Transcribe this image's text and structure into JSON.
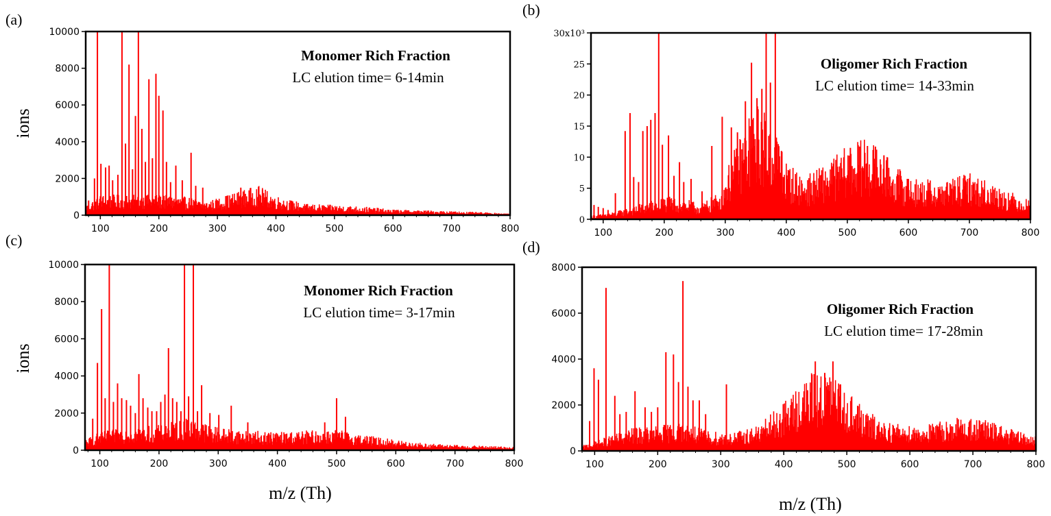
{
  "figure": {
    "ylabel_left": "ions",
    "xlabel": "m/z (Th)"
  },
  "chart_data": [
    {
      "panel": "(a)",
      "type": "bar",
      "title": "",
      "xlabel": "",
      "ylabel": "ions",
      "xlim": [
        75,
        800
      ],
      "ylim": [
        0,
        10000
      ],
      "xticks": [
        100,
        200,
        300,
        400,
        500,
        600,
        700,
        800
      ],
      "yticks": [
        0,
        2000,
        4000,
        6000,
        8000,
        10000
      ],
      "ytick_labels": [
        "0",
        "2000",
        "4000",
        "6000",
        "8000",
        "10000"
      ],
      "annotation": {
        "title": "Monomer Rich Fraction",
        "subtitle": "LC elution time= 6-14min"
      },
      "color": "#ff0000",
      "envelope": [
        [
          78,
          500
        ],
        [
          100,
          900
        ],
        [
          150,
          900
        ],
        [
          200,
          900
        ],
        [
          250,
          800
        ],
        [
          280,
          600
        ],
        [
          300,
          750
        ],
        [
          330,
          1000
        ],
        [
          370,
          1300
        ],
        [
          400,
          850
        ],
        [
          450,
          500
        ],
        [
          500,
          450
        ],
        [
          550,
          380
        ],
        [
          600,
          250
        ],
        [
          700,
          180
        ],
        [
          800,
          80
        ]
      ],
      "peaks": [
        [
          80,
          800
        ],
        [
          90,
          2000
        ],
        [
          95,
          10000
        ],
        [
          101,
          2800
        ],
        [
          109,
          2600
        ],
        [
          115,
          2700
        ],
        [
          121,
          1900
        ],
        [
          130,
          2200
        ],
        [
          137,
          10000
        ],
        [
          143,
          3900
        ],
        [
          149,
          8200
        ],
        [
          155,
          2500
        ],
        [
          160,
          5400
        ],
        [
          165,
          10000
        ],
        [
          171,
          4700
        ],
        [
          177,
          2900
        ],
        [
          183,
          7400
        ],
        [
          189,
          3100
        ],
        [
          195,
          7700
        ],
        [
          200,
          6500
        ],
        [
          207,
          5700
        ],
        [
          213,
          2900
        ],
        [
          220,
          1800
        ],
        [
          229,
          2700
        ],
        [
          240,
          1900
        ],
        [
          255,
          3400
        ],
        [
          263,
          1600
        ],
        [
          275,
          1500
        ],
        [
          340,
          1500
        ],
        [
          377,
          1400
        ]
      ]
    },
    {
      "panel": "(b)",
      "type": "bar",
      "title": "",
      "xlabel": "",
      "ylabel": "",
      "xlim": [
        80,
        800
      ],
      "ylim": [
        0,
        30000
      ],
      "xticks": [
        100,
        200,
        300,
        400,
        500,
        600,
        700,
        800
      ],
      "yticks": [
        0,
        5000,
        10000,
        15000,
        20000,
        25000,
        30000
      ],
      "ytick_labels": [
        "0",
        "5",
        "10",
        "15",
        "20",
        "25",
        "30x10³"
      ],
      "annotation": {
        "title": "Oligomer Rich Fraction",
        "subtitle": "LC elution time= 14-33min"
      },
      "color": "#ff0000",
      "envelope": [
        [
          82,
          500
        ],
        [
          120,
          1000
        ],
        [
          160,
          2000
        ],
        [
          200,
          3000
        ],
        [
          240,
          2500
        ],
        [
          260,
          2000
        ],
        [
          290,
          3500
        ],
        [
          310,
          8000
        ],
        [
          330,
          12000
        ],
        [
          350,
          15000
        ],
        [
          380,
          13000
        ],
        [
          400,
          7500
        ],
        [
          430,
          5500
        ],
        [
          460,
          7000
        ],
        [
          500,
          9500
        ],
        [
          530,
          10500
        ],
        [
          560,
          8500
        ],
        [
          600,
          5500
        ],
        [
          650,
          5000
        ],
        [
          700,
          6000
        ],
        [
          730,
          5000
        ],
        [
          770,
          3500
        ],
        [
          800,
          2500
        ]
      ],
      "peaks": [
        [
          85,
          2300
        ],
        [
          92,
          2000
        ],
        [
          100,
          1800
        ],
        [
          108,
          1500
        ],
        [
          120,
          4200
        ],
        [
          136,
          14200
        ],
        [
          144,
          17100
        ],
        [
          150,
          6800
        ],
        [
          158,
          6000
        ],
        [
          165,
          14200
        ],
        [
          172,
          15000
        ],
        [
          178,
          16000
        ],
        [
          185,
          17100
        ],
        [
          191,
          30000
        ],
        [
          197,
          12000
        ],
        [
          207,
          13500
        ],
        [
          216,
          7000
        ],
        [
          225,
          9200
        ],
        [
          232,
          6000
        ],
        [
          244,
          6500
        ],
        [
          262,
          4500
        ],
        [
          278,
          11800
        ],
        [
          295,
          16500
        ],
        [
          310,
          14800
        ],
        [
          320,
          14000
        ],
        [
          333,
          19000
        ],
        [
          343,
          25200
        ],
        [
          352,
          19500
        ],
        [
          360,
          21000
        ],
        [
          367,
          30000
        ],
        [
          374,
          22000
        ],
        [
          382,
          30000
        ],
        [
          392,
          11000
        ],
        [
          505,
          11500
        ],
        [
          520,
          11700
        ],
        [
          533,
          11800
        ],
        [
          546,
          11700
        ],
        [
          560,
          10300
        ],
        [
          600,
          6500
        ],
        [
          700,
          6600
        ]
      ]
    },
    {
      "panel": "(c)",
      "type": "bar",
      "title": "",
      "xlabel": "",
      "ylabel": "ions",
      "xlim": [
        75,
        800
      ],
      "ylim": [
        0,
        10000
      ],
      "xticks": [
        100,
        200,
        300,
        400,
        500,
        600,
        700,
        800
      ],
      "yticks": [
        0,
        2000,
        4000,
        6000,
        8000,
        10000
      ],
      "ytick_labels": [
        "0",
        "2000",
        "4000",
        "6000",
        "8000",
        "10000"
      ],
      "annotation": {
        "title": "Monomer Rich Fraction",
        "subtitle": "LC elution time= 3-17min"
      },
      "color": "#ff0000",
      "envelope": [
        [
          78,
          500
        ],
        [
          100,
          800
        ],
        [
          150,
          1000
        ],
        [
          200,
          1100
        ],
        [
          250,
          1400
        ],
        [
          300,
          1000
        ],
        [
          350,
          850
        ],
        [
          400,
          800
        ],
        [
          450,
          850
        ],
        [
          500,
          900
        ],
        [
          550,
          650
        ],
        [
          600,
          450
        ],
        [
          650,
          300
        ],
        [
          700,
          230
        ],
        [
          800,
          150
        ]
      ],
      "peaks": [
        [
          88,
          1700
        ],
        [
          96,
          4700
        ],
        [
          103,
          7600
        ],
        [
          109,
          2800
        ],
        [
          116,
          10000
        ],
        [
          123,
          2600
        ],
        [
          130,
          3600
        ],
        [
          137,
          2800
        ],
        [
          145,
          2700
        ],
        [
          152,
          2400
        ],
        [
          160,
          2000
        ],
        [
          166,
          4100
        ],
        [
          173,
          2800
        ],
        [
          181,
          2300
        ],
        [
          188,
          2100
        ],
        [
          196,
          2100
        ],
        [
          203,
          2600
        ],
        [
          210,
          3000
        ],
        [
          216,
          5500
        ],
        [
          223,
          2800
        ],
        [
          230,
          2600
        ],
        [
          237,
          2100
        ],
        [
          243,
          10000
        ],
        [
          250,
          2900
        ],
        [
          258,
          10000
        ],
        [
          265,
          2100
        ],
        [
          272,
          3500
        ],
        [
          286,
          2000
        ],
        [
          301,
          1900
        ],
        [
          322,
          2400
        ],
        [
          350,
          1500
        ],
        [
          480,
          1500
        ],
        [
          500,
          2800
        ],
        [
          515,
          1800
        ]
      ]
    },
    {
      "panel": "(d)",
      "type": "bar",
      "title": "",
      "xlabel": "m/z (Th)",
      "ylabel": "",
      "xlim": [
        80,
        800
      ],
      "ylim": [
        0,
        8000
      ],
      "xticks": [
        100,
        200,
        300,
        400,
        500,
        600,
        700,
        800
      ],
      "yticks": [
        0,
        2000,
        4000,
        6000,
        8000
      ],
      "ytick_labels": [
        "0",
        "2000",
        "4000",
        "6000",
        "8000"
      ],
      "annotation": {
        "title": "Oligomer Rich Fraction",
        "subtitle": "LC elution time= 17-28min"
      },
      "color": "#ff0000",
      "envelope": [
        [
          82,
          200
        ],
        [
          120,
          500
        ],
        [
          160,
          800
        ],
        [
          200,
          900
        ],
        [
          240,
          1000
        ],
        [
          280,
          700
        ],
        [
          320,
          650
        ],
        [
          360,
          900
        ],
        [
          400,
          1700
        ],
        [
          440,
          2700
        ],
        [
          470,
          2800
        ],
        [
          500,
          2200
        ],
        [
          530,
          1400
        ],
        [
          570,
          1000
        ],
        [
          620,
          900
        ],
        [
          680,
          1200
        ],
        [
          720,
          1100
        ],
        [
          770,
          700
        ],
        [
          800,
          500
        ]
      ],
      "peaks": [
        [
          92,
          1300
        ],
        [
          99,
          3600
        ],
        [
          106,
          3100
        ],
        [
          118,
          7100
        ],
        [
          132,
          2400
        ],
        [
          140,
          1600
        ],
        [
          150,
          1700
        ],
        [
          164,
          2600
        ],
        [
          180,
          1900
        ],
        [
          190,
          1700
        ],
        [
          200,
          1900
        ],
        [
          213,
          4300
        ],
        [
          225,
          4200
        ],
        [
          233,
          3000
        ],
        [
          240,
          7400
        ],
        [
          248,
          2800
        ],
        [
          256,
          2200
        ],
        [
          266,
          2200
        ],
        [
          276,
          1600
        ],
        [
          309,
          2900
        ],
        [
          450,
          3900
        ],
        [
          465,
          3400
        ],
        [
          478,
          3900
        ],
        [
          490,
          2900
        ]
      ]
    }
  ]
}
